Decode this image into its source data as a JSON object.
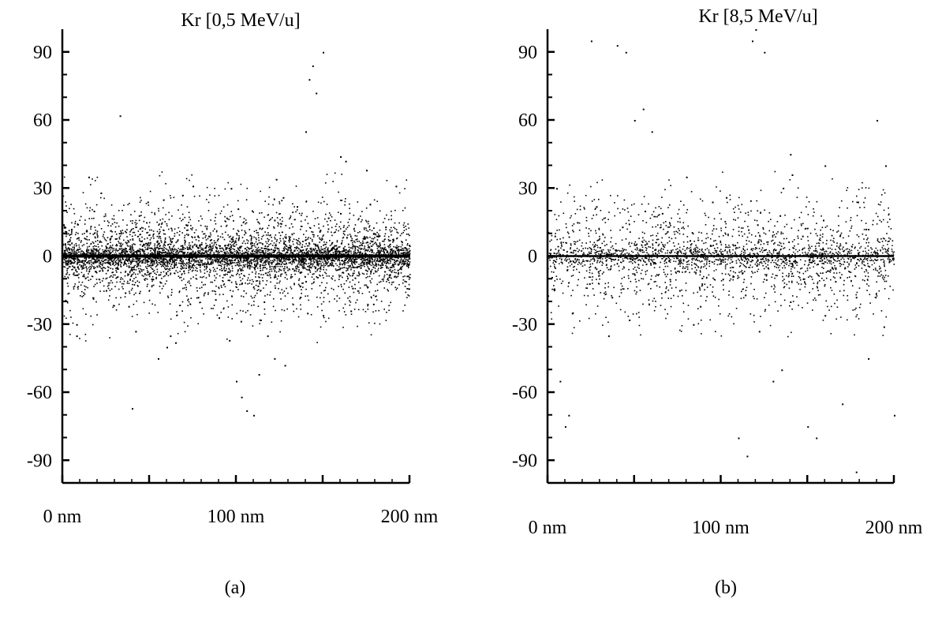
{
  "chart_data": [
    {
      "type": "scatter",
      "title": "Kr [0,5 MeV/u]",
      "panel_label": "(a)",
      "x_tick_labels": [
        "0 nm",
        "100 nm",
        "200 nm"
      ],
      "x_ticks": [
        0,
        100,
        200
      ],
      "y_ticks": [
        -90,
        -60,
        -30,
        0,
        30,
        60,
        90
      ],
      "y_tick_labels": [
        "-90",
        "-60",
        "-30",
        "0",
        "30",
        "60",
        "90"
      ],
      "xlim": [
        0,
        200
      ],
      "ylim": [
        -100,
        100
      ],
      "grid": false,
      "series": [
        {
          "style": "track core",
          "x": [
            0,
            200
          ],
          "y": [
            0,
            0
          ]
        },
        {
          "style": "dense scatter points (representative sample)",
          "x": [
            5,
            12,
            18,
            25,
            31,
            38,
            44,
            52,
            58,
            63,
            71,
            78,
            84,
            90,
            97,
            103,
            109,
            116,
            122,
            128,
            135,
            141,
            148,
            154,
            160,
            167,
            173,
            179,
            186,
            192,
            197,
            8,
            22,
            36,
            49,
            62,
            75,
            88,
            101,
            114,
            127,
            140,
            153,
            166,
            179,
            193,
            15,
            42,
            69,
            96,
            123,
            150,
            177
          ],
          "y": [
            12,
            -8,
            20,
            -15,
            5,
            -22,
            18,
            -10,
            25,
            -5,
            14,
            -18,
            9,
            -27,
            30,
            -12,
            6,
            -20,
            16,
            -7,
            22,
            -25,
            11,
            -3,
            19,
            -14,
            8,
            -21,
            13,
            -9,
            4,
            -30,
            28,
            -16,
            24,
            -35,
            31,
            -19,
            21,
            -28,
            26,
            -11,
            17,
            -24,
            10,
            -6,
            35,
            -33,
            27,
            -37,
            34,
            -26,
            23
          ]
        },
        {
          "style": "sparse outlier points (representative sample)",
          "x": [
            33,
            55,
            60,
            65,
            100,
            103,
            106,
            110,
            113,
            118,
            122,
            128,
            140,
            142,
            144,
            146,
            150,
            160,
            163,
            175,
            192,
            40,
            8
          ],
          "y": [
            62,
            -45,
            -40,
            -38,
            -55,
            -62,
            -68,
            -70,
            -52,
            -35,
            -45,
            -48,
            55,
            78,
            84,
            72,
            90,
            44,
            42,
            38,
            31,
            -67,
            -35
          ]
        }
      ]
    },
    {
      "type": "scatter",
      "title": "Kr [8,5 MeV/u]",
      "panel_label": "(b)",
      "x_tick_labels": [
        "0 nm",
        "100 nm",
        "200 nm"
      ],
      "x_ticks": [
        0,
        100,
        200
      ],
      "y_ticks": [
        -90,
        -60,
        -30,
        0,
        30,
        60,
        90
      ],
      "y_tick_labels": [
        "-90",
        "-60",
        "-30",
        "0",
        "30",
        "60",
        "90"
      ],
      "xlim": [
        0,
        200
      ],
      "ylim": [
        -100,
        100
      ],
      "grid": false,
      "series": [
        {
          "style": "track core",
          "x": [
            0,
            200
          ],
          "y": [
            0,
            0
          ]
        },
        {
          "style": "scatter points (representative sample)",
          "x": [
            4,
            11,
            17,
            24,
            30,
            37,
            43,
            50,
            56,
            62,
            69,
            76,
            82,
            88,
            95,
            101,
            108,
            114,
            121,
            127,
            134,
            140,
            147,
            153,
            159,
            166,
            172,
            178,
            185,
            191,
            196,
            14,
            28,
            47,
            66,
            84,
            103,
            122,
            141,
            160,
            179,
            194
          ],
          "y": [
            9,
            -6,
            15,
            -12,
            4,
            -18,
            13,
            -8,
            20,
            -3,
            11,
            -15,
            7,
            -22,
            24,
            -10,
            5,
            -17,
            14,
            -5,
            18,
            -20,
            9,
            -2,
            16,
            -11,
            6,
            -18,
            12,
            -7,
            3,
            -25,
            22,
            -28,
            19,
            -30,
            26,
            -33,
            36,
            -26,
            24,
            -31
          ]
        },
        {
          "style": "sparse outlier points (representative sample)",
          "x": [
            5,
            7,
            10,
            12,
            25,
            40,
            45,
            50,
            55,
            60,
            110,
            115,
            118,
            120,
            125,
            130,
            140,
            150,
            155,
            160,
            170,
            178,
            185,
            190,
            195,
            200,
            35,
            80,
            135
          ],
          "y": [
            30,
            -55,
            -75,
            -70,
            95,
            93,
            90,
            60,
            65,
            55,
            -80,
            -88,
            95,
            100,
            90,
            -55,
            45,
            -75,
            -80,
            40,
            -65,
            -95,
            -45,
            60,
            40,
            -70,
            -35,
            35,
            -50
          ]
        }
      ]
    }
  ]
}
